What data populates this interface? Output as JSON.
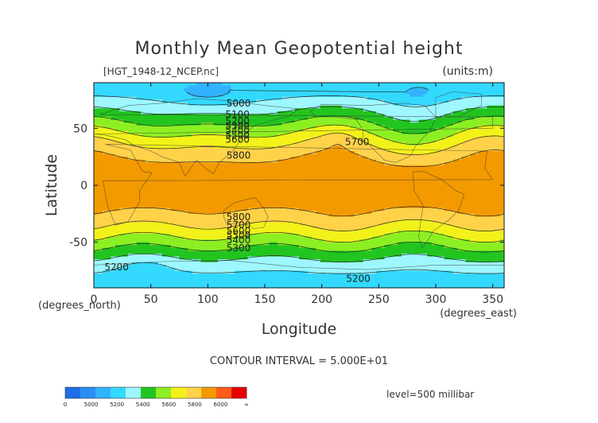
{
  "chart_data": {
    "type": "heatmap",
    "title": "Monthly Mean Geopotential height",
    "file_label": "[HGT_1948-12_NCEP.nc]",
    "units_label": "(units:m)",
    "xlabel": "Longitude",
    "ylabel": "Latitude",
    "x_unit_label": "(degrees_east)",
    "y_unit_label": "(degrees_north)",
    "xlim": [
      0,
      360
    ],
    "ylim": [
      -90,
      90
    ],
    "x_ticks": [
      0,
      50,
      100,
      150,
      200,
      250,
      300,
      350
    ],
    "y_ticks": [
      50,
      0,
      -50
    ],
    "contour_interval_text": "CONTOUR INTERVAL = 5.000E+01",
    "level_text": "level=500 millibar",
    "levels": [
      0,
      5000,
      5100,
      5200,
      5300,
      5400,
      5500,
      5600,
      5700,
      5800,
      5900,
      6000,
      6100
    ],
    "colors": [
      "#1c6fe6",
      "#2a8ff3",
      "#33b2ff",
      "#33d9ff",
      "#9ef7ff",
      "#22c51f",
      "#8cef23",
      "#f2f21a",
      "#ffd24a",
      "#f39a00",
      "#ff5a1a",
      "#e60000"
    ],
    "colorbar_labels": [
      "0",
      "5000",
      "5200",
      "5400",
      "5600",
      "5800",
      "6000",
      "∞"
    ],
    "contour_labels": [
      {
        "text": "5000",
        "lon": 127,
        "lat": 72
      },
      {
        "text": "5100",
        "lon": 126,
        "lat": 62
      },
      {
        "text": "5200",
        "lon": 126,
        "lat": 56
      },
      {
        "text": "5300",
        "lon": 126,
        "lat": 52
      },
      {
        "text": "5400",
        "lon": 126,
        "lat": 48
      },
      {
        "text": "5500",
        "lon": 126,
        "lat": 44
      },
      {
        "text": "5600",
        "lon": 126,
        "lat": 40
      },
      {
        "text": "5700",
        "lon": 231,
        "lat": 38
      },
      {
        "text": "5800",
        "lon": 127,
        "lat": 26
      },
      {
        "text": "5800",
        "lon": 127,
        "lat": -28
      },
      {
        "text": "5700",
        "lon": 127,
        "lat": -35
      },
      {
        "text": "5600",
        "lon": 127,
        "lat": -40
      },
      {
        "text": "5500",
        "lon": 127,
        "lat": -44
      },
      {
        "text": "5400",
        "lon": 127,
        "lat": -48
      },
      {
        "text": "5300",
        "lon": 127,
        "lat": -55
      },
      {
        "text": "5200",
        "lon": 20,
        "lat": -72
      },
      {
        "text": "5200",
        "lon": 232,
        "lat": -82
      }
    ]
  }
}
